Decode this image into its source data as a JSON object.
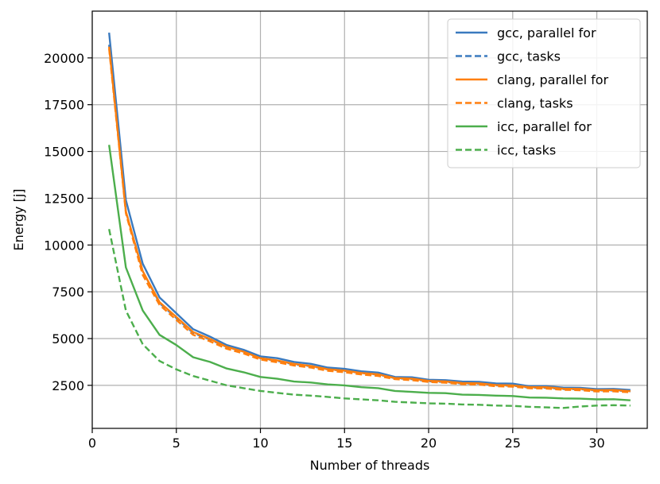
{
  "chart_data": {
    "type": "line",
    "title": "",
    "xlabel": "Number of threads",
    "ylabel": "Energy [j]",
    "xlim": [
      0,
      33
    ],
    "ylim": [
      200,
      22500
    ],
    "xticks": [
      0,
      5,
      10,
      15,
      20,
      25,
      30
    ],
    "yticks": [
      2500,
      5000,
      7500,
      10000,
      12500,
      15000,
      17500,
      20000
    ],
    "grid": true,
    "legend_position": "top-right",
    "x": [
      1,
      2,
      3,
      4,
      5,
      6,
      7,
      8,
      9,
      10,
      11,
      12,
      13,
      14,
      15,
      16,
      17,
      18,
      19,
      20,
      21,
      22,
      23,
      24,
      25,
      26,
      27,
      28,
      29,
      30,
      31,
      32
    ],
    "series": [
      {
        "name": "gcc, parallel for",
        "color": "#3a7abf",
        "dash": "solid",
        "values": [
          21350,
          12400,
          9000,
          7200,
          6350,
          5500,
          5100,
          4650,
          4400,
          4050,
          3950,
          3750,
          3650,
          3450,
          3380,
          3250,
          3180,
          2950,
          2930,
          2800,
          2780,
          2700,
          2690,
          2600,
          2590,
          2450,
          2450,
          2380,
          2370,
          2300,
          2310,
          2250
        ]
      },
      {
        "name": "gcc, tasks",
        "color": "#3a7abf",
        "dash": "dashed",
        "values": [
          20700,
          11800,
          8600,
          6900,
          6100,
          5300,
          4950,
          4550,
          4300,
          3950,
          3800,
          3620,
          3520,
          3350,
          3270,
          3150,
          3070,
          2880,
          2830,
          2720,
          2680,
          2600,
          2590,
          2500,
          2480,
          2380,
          2370,
          2300,
          2290,
          2220,
          2230,
          2180
        ]
      },
      {
        "name": "clang, parallel for",
        "color": "#ff7f0e",
        "dash": "solid",
        "values": [
          20600,
          11800,
          8600,
          6950,
          6150,
          5350,
          4980,
          4560,
          4300,
          3950,
          3830,
          3650,
          3540,
          3360,
          3290,
          3160,
          3090,
          2890,
          2860,
          2740,
          2710,
          2620,
          2610,
          2520,
          2500,
          2400,
          2400,
          2320,
          2310,
          2240,
          2250,
          2190
        ]
      },
      {
        "name": "clang, tasks",
        "color": "#ff7f0e",
        "dash": "dashed",
        "values": [
          20500,
          11700,
          8400,
          6800,
          6000,
          5200,
          4850,
          4450,
          4200,
          3880,
          3730,
          3560,
          3450,
          3280,
          3200,
          3080,
          3000,
          2830,
          2780,
          2680,
          2640,
          2560,
          2540,
          2450,
          2430,
          2340,
          2330,
          2260,
          2240,
          2170,
          2180,
          2130
        ]
      },
      {
        "name": "icc, parallel for",
        "color": "#4cae4c",
        "dash": "solid",
        "values": [
          15350,
          8800,
          6500,
          5200,
          4650,
          4000,
          3750,
          3400,
          3200,
          2950,
          2850,
          2700,
          2650,
          2550,
          2500,
          2400,
          2350,
          2200,
          2150,
          2100,
          2080,
          2000,
          1990,
          1950,
          1930,
          1850,
          1840,
          1800,
          1790,
          1750,
          1760,
          1700
        ]
      },
      {
        "name": "icc, tasks",
        "color": "#4cae4c",
        "dash": "dashed",
        "values": [
          10850,
          6500,
          4700,
          3800,
          3350,
          3000,
          2750,
          2500,
          2350,
          2200,
          2100,
          2000,
          1950,
          1880,
          1800,
          1750,
          1700,
          1620,
          1580,
          1540,
          1520,
          1480,
          1460,
          1420,
          1400,
          1350,
          1320,
          1290,
          1370,
          1420,
          1440,
          1420
        ]
      }
    ]
  }
}
